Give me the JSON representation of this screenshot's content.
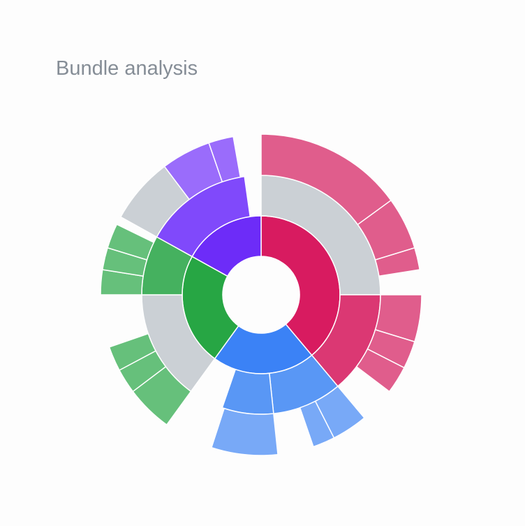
{
  "chart_data": {
    "type": "sunburst",
    "title": "Bundle analysis",
    "children": [
      {
        "value": 140,
        "color": "#d81b60",
        "children": [
          {
            "value": 90,
            "color": "#cbd0d5",
            "children": [
              {
                "value": 54,
                "color": "#e05d8c"
              },
              {
                "value": 19,
                "color": "#e05d8c"
              },
              {
                "value": 8,
                "color": "#e05d8c"
              }
            ]
          },
          {
            "value": 50,
            "color": "#db3873",
            "children": [
              {
                "value": 17,
                "color": "#e05d8c"
              },
              {
                "value": 10,
                "color": "#e05d8c"
              },
              {
                "value": 10,
                "color": "#e05d8c"
              }
            ]
          }
        ]
      },
      {
        "value": 76,
        "color": "#3b82f6",
        "children": [
          {
            "value": 34,
            "color": "#5997f5",
            "children": [
              {
                "value": 13,
                "color": "#78a9f7"
              },
              {
                "value": 8,
                "color": "#78a9f7"
              }
            ]
          },
          {
            "value": 25,
            "color": "#5997f5",
            "children": [
              {
                "value": 24,
                "color": "#78a9f7"
              }
            ]
          }
        ]
      },
      {
        "value": 83,
        "color": "#27a644",
        "children": [
          {
            "value": 54,
            "color": "#cbd0d5",
            "children": [
              {
                "value": 17,
                "color": "#66c07b"
              },
              {
                "value": 9,
                "color": "#66c07b"
              },
              {
                "value": 9,
                "color": "#66c07b"
              }
            ]
          },
          {
            "value": 29,
            "color": "#45b15f",
            "children": [
              {
                "value": 9,
                "color": "#66c07b"
              },
              {
                "value": 8,
                "color": "#66c07b"
              },
              {
                "value": 9,
                "color": "#66c07b"
              }
            ]
          }
        ]
      },
      {
        "value": 61,
        "color": "#6d2cf8",
        "children": [
          {
            "value": 53,
            "color": "#8049fb",
            "children": [
              {
                "value": 24,
                "color": "#cbd0d5"
              },
              {
                "value": 18,
                "color": "#9a6cfb"
              },
              {
                "value": 9,
                "color": "#9a6cfb"
              }
            ]
          }
        ]
      }
    ]
  }
}
